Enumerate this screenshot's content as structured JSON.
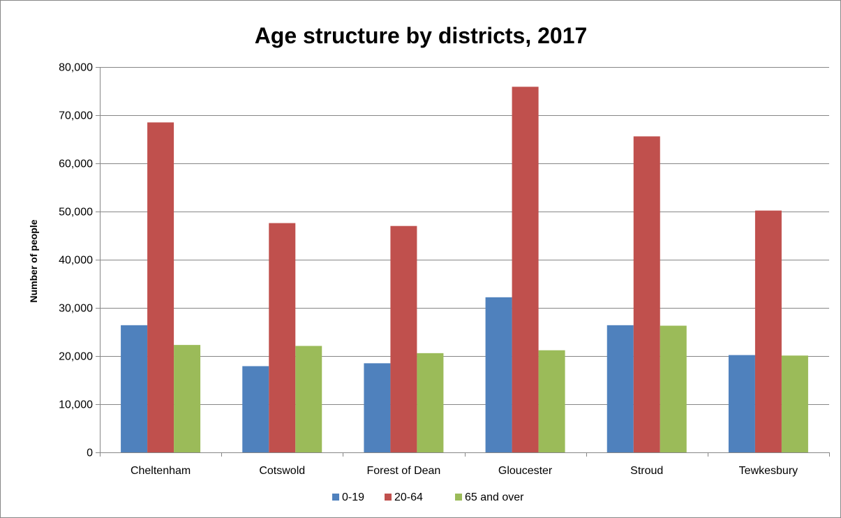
{
  "chart_data": {
    "type": "bar",
    "title": "Age structure by districts, 2017",
    "xlabel": "",
    "ylabel": "Number of people",
    "ylim": [
      0,
      80000
    ],
    "yticks": [
      0,
      10000,
      20000,
      30000,
      40000,
      50000,
      60000,
      70000,
      80000
    ],
    "ytick_labels": [
      "0",
      "10,000",
      "20,000",
      "30,000",
      "40,000",
      "50,000",
      "60,000",
      "70,000",
      "80,000"
    ],
    "grid": true,
    "legend_position": "bottom",
    "categories": [
      "Cheltenham",
      "Cotswold",
      "Forest of Dean",
      "Gloucester",
      "Stroud",
      "Tewkesbury"
    ],
    "series": [
      {
        "name": "0-19",
        "color": "#4F81BD",
        "values": [
          26400,
          17900,
          18500,
          32200,
          26400,
          20200
        ]
      },
      {
        "name": "20-64",
        "color": "#C0504D",
        "values": [
          68500,
          47600,
          47000,
          75900,
          65600,
          50200
        ]
      },
      {
        "name": "65 and over",
        "color": "#9BBB59",
        "values": [
          22300,
          22100,
          20600,
          21200,
          26300,
          20100
        ]
      }
    ]
  }
}
